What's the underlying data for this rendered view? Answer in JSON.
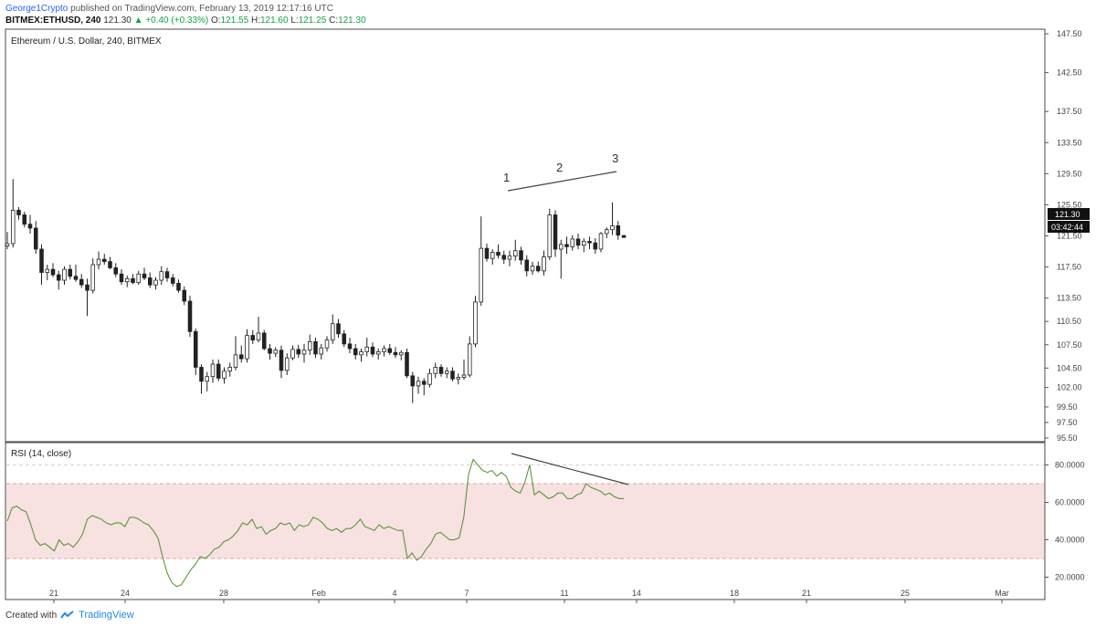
{
  "header": {
    "author": "George1Crypto",
    "published_text": "published on TradingView.com, February 13, 2019 12:17:16 UTC",
    "symbol": "BITMEX:ETHUSD, 240",
    "last": "121.30",
    "change": "+0.40 (+0.33%)",
    "o_label": "O:",
    "o": "121.55",
    "h_label": "H:",
    "h": "121.60",
    "l_label": "L:",
    "l": "121.25",
    "c_label": "C:",
    "c": "121.30"
  },
  "footer": {
    "created_with": "Created with",
    "brand": "TradingView"
  },
  "chart_data": [
    {
      "type": "candlestick",
      "title": "Ethereum / U.S. Dollar, 240, BITMEX",
      "x_ticks": [
        "21",
        "24",
        "28",
        "Feb",
        "4",
        "7",
        "11",
        "14",
        "18",
        "21",
        "25",
        "Mar"
      ],
      "y_ticks": [
        "95.50",
        "97.50",
        "99.50",
        "102.00",
        "104.50",
        "107.50",
        "110.50",
        "113.50",
        "117.50",
        "121.50",
        "125.50",
        "129.50",
        "133.50",
        "137.50",
        "142.50",
        "147.50"
      ],
      "ylim": [
        95.5,
        147.5
      ],
      "last_price_label": "121.30",
      "countdown_label": "03:42:44",
      "annotations": [
        "1",
        "2",
        "3"
      ],
      "candles": [
        {
          "o": 120.2,
          "h": 122.0,
          "l": 119.8,
          "c": 120.5
        },
        {
          "o": 120.5,
          "h": 128.8,
          "l": 120.0,
          "c": 124.8
        },
        {
          "o": 124.8,
          "h": 125.2,
          "l": 123.6,
          "c": 124.2
        },
        {
          "o": 124.2,
          "h": 124.6,
          "l": 122.6,
          "c": 123.0
        },
        {
          "o": 123.0,
          "h": 124.2,
          "l": 121.8,
          "c": 122.5
        },
        {
          "o": 122.5,
          "h": 123.4,
          "l": 119.2,
          "c": 119.8
        },
        {
          "o": 119.8,
          "h": 120.4,
          "l": 115.2,
          "c": 116.8
        },
        {
          "o": 116.8,
          "h": 117.8,
          "l": 115.8,
          "c": 117.2
        },
        {
          "o": 117.2,
          "h": 118.0,
          "l": 116.2,
          "c": 116.5
        },
        {
          "o": 116.5,
          "h": 117.0,
          "l": 114.6,
          "c": 115.8
        },
        {
          "o": 115.8,
          "h": 117.6,
          "l": 115.2,
          "c": 117.2
        },
        {
          "o": 117.2,
          "h": 117.8,
          "l": 115.9,
          "c": 116.3
        },
        {
          "o": 116.3,
          "h": 117.8,
          "l": 115.6,
          "c": 115.9
        },
        {
          "o": 115.9,
          "h": 116.6,
          "l": 114.8,
          "c": 115.2
        },
        {
          "o": 115.2,
          "h": 116.0,
          "l": 111.2,
          "c": 114.5
        },
        {
          "o": 114.5,
          "h": 118.6,
          "l": 114.1,
          "c": 117.8
        },
        {
          "o": 117.8,
          "h": 119.5,
          "l": 117.2,
          "c": 118.5
        },
        {
          "o": 118.5,
          "h": 119.2,
          "l": 117.8,
          "c": 118.2
        },
        {
          "o": 118.2,
          "h": 118.8,
          "l": 117.2,
          "c": 117.4
        },
        {
          "o": 117.4,
          "h": 118.0,
          "l": 116.2,
          "c": 116.6
        },
        {
          "o": 116.6,
          "h": 117.2,
          "l": 115.2,
          "c": 115.6
        },
        {
          "o": 115.6,
          "h": 116.4,
          "l": 114.9,
          "c": 116.0
        },
        {
          "o": 116.0,
          "h": 116.6,
          "l": 115.3,
          "c": 115.5
        },
        {
          "o": 115.5,
          "h": 117.0,
          "l": 115.2,
          "c": 116.6
        },
        {
          "o": 116.6,
          "h": 117.4,
          "l": 115.8,
          "c": 116.1
        },
        {
          "o": 116.1,
          "h": 116.8,
          "l": 114.8,
          "c": 115.2
        },
        {
          "o": 115.2,
          "h": 116.2,
          "l": 114.6,
          "c": 115.8
        },
        {
          "o": 115.8,
          "h": 117.6,
          "l": 115.2,
          "c": 116.9
        },
        {
          "o": 116.9,
          "h": 117.4,
          "l": 115.6,
          "c": 116.1
        },
        {
          "o": 116.1,
          "h": 116.6,
          "l": 115.0,
          "c": 115.4
        },
        {
          "o": 115.4,
          "h": 115.9,
          "l": 114.2,
          "c": 114.5
        },
        {
          "o": 114.5,
          "h": 115.0,
          "l": 112.6,
          "c": 113.1
        },
        {
          "o": 113.1,
          "h": 113.8,
          "l": 108.5,
          "c": 109.2
        },
        {
          "o": 109.2,
          "h": 109.6,
          "l": 103.6,
          "c": 104.6
        },
        {
          "o": 104.6,
          "h": 105.0,
          "l": 101.2,
          "c": 102.8
        },
        {
          "o": 102.8,
          "h": 104.0,
          "l": 101.5,
          "c": 103.4
        },
        {
          "o": 103.4,
          "h": 105.6,
          "l": 102.6,
          "c": 105.0
        },
        {
          "o": 105.0,
          "h": 105.6,
          "l": 102.8,
          "c": 103.2
        },
        {
          "o": 103.2,
          "h": 104.6,
          "l": 102.5,
          "c": 104.1
        },
        {
          "o": 104.1,
          "h": 105.2,
          "l": 103.4,
          "c": 104.6
        },
        {
          "o": 104.6,
          "h": 108.6,
          "l": 104.2,
          "c": 106.2
        },
        {
          "o": 106.2,
          "h": 107.4,
          "l": 105.2,
          "c": 105.7
        },
        {
          "o": 105.7,
          "h": 109.5,
          "l": 105.2,
          "c": 108.7
        },
        {
          "o": 108.7,
          "h": 109.4,
          "l": 107.6,
          "c": 108.1
        },
        {
          "o": 108.1,
          "h": 111.1,
          "l": 107.8,
          "c": 109.0
        },
        {
          "o": 109.0,
          "h": 109.4,
          "l": 106.8,
          "c": 107.0
        },
        {
          "o": 107.0,
          "h": 107.6,
          "l": 105.6,
          "c": 106.4
        },
        {
          "o": 106.4,
          "h": 107.2,
          "l": 105.9,
          "c": 106.8
        },
        {
          "o": 106.8,
          "h": 107.4,
          "l": 103.2,
          "c": 104.2
        },
        {
          "o": 104.2,
          "h": 106.4,
          "l": 103.6,
          "c": 105.8
        },
        {
          "o": 105.8,
          "h": 107.4,
          "l": 105.5,
          "c": 106.9
        },
        {
          "o": 106.9,
          "h": 107.5,
          "l": 105.8,
          "c": 106.3
        },
        {
          "o": 106.3,
          "h": 107.6,
          "l": 105.2,
          "c": 106.8
        },
        {
          "o": 106.8,
          "h": 108.8,
          "l": 106.2,
          "c": 107.9
        },
        {
          "o": 107.9,
          "h": 108.4,
          "l": 105.8,
          "c": 106.3
        },
        {
          "o": 106.3,
          "h": 107.6,
          "l": 105.6,
          "c": 107.1
        },
        {
          "o": 107.1,
          "h": 108.6,
          "l": 106.6,
          "c": 108.1
        },
        {
          "o": 108.1,
          "h": 111.4,
          "l": 107.6,
          "c": 110.2
        },
        {
          "o": 110.2,
          "h": 110.8,
          "l": 108.4,
          "c": 108.9
        },
        {
          "o": 108.9,
          "h": 109.4,
          "l": 107.2,
          "c": 107.6
        },
        {
          "o": 107.6,
          "h": 108.4,
          "l": 106.4,
          "c": 107.0
        },
        {
          "o": 107.0,
          "h": 107.6,
          "l": 105.6,
          "c": 106.2
        },
        {
          "o": 106.2,
          "h": 107.0,
          "l": 105.3,
          "c": 106.6
        },
        {
          "o": 106.6,
          "h": 108.4,
          "l": 106.0,
          "c": 107.2
        },
        {
          "o": 107.2,
          "h": 107.8,
          "l": 105.9,
          "c": 106.3
        },
        {
          "o": 106.3,
          "h": 107.0,
          "l": 105.6,
          "c": 106.6
        },
        {
          "o": 106.6,
          "h": 107.4,
          "l": 106.0,
          "c": 107.0
        },
        {
          "o": 107.0,
          "h": 107.6,
          "l": 106.2,
          "c": 106.5
        },
        {
          "o": 106.5,
          "h": 107.2,
          "l": 105.8,
          "c": 106.2
        },
        {
          "o": 106.2,
          "h": 106.8,
          "l": 105.5,
          "c": 106.5
        },
        {
          "o": 106.5,
          "h": 107.0,
          "l": 103.2,
          "c": 103.5
        },
        {
          "o": 103.5,
          "h": 104.0,
          "l": 100.0,
          "c": 102.2
        },
        {
          "o": 102.2,
          "h": 103.4,
          "l": 101.2,
          "c": 102.8
        },
        {
          "o": 102.8,
          "h": 103.2,
          "l": 101.0,
          "c": 102.4
        },
        {
          "o": 102.4,
          "h": 104.4,
          "l": 102.0,
          "c": 103.8
        },
        {
          "o": 103.8,
          "h": 105.2,
          "l": 103.2,
          "c": 104.6
        },
        {
          "o": 104.6,
          "h": 105.0,
          "l": 103.4,
          "c": 103.8
        },
        {
          "o": 103.8,
          "h": 104.6,
          "l": 103.2,
          "c": 104.1
        },
        {
          "o": 104.1,
          "h": 104.6,
          "l": 102.8,
          "c": 103.1
        },
        {
          "o": 103.1,
          "h": 103.8,
          "l": 102.4,
          "c": 103.3
        },
        {
          "o": 103.3,
          "h": 105.6,
          "l": 103.0,
          "c": 103.6
        },
        {
          "o": 103.6,
          "h": 108.6,
          "l": 103.3,
          "c": 107.6
        },
        {
          "o": 107.6,
          "h": 113.8,
          "l": 107.2,
          "c": 113.0
        },
        {
          "o": 113.0,
          "h": 124.0,
          "l": 112.5,
          "c": 119.9
        },
        {
          "o": 119.9,
          "h": 120.5,
          "l": 118.2,
          "c": 118.6
        },
        {
          "o": 118.6,
          "h": 119.8,
          "l": 117.8,
          "c": 119.4
        },
        {
          "o": 119.4,
          "h": 120.4,
          "l": 118.6,
          "c": 119.0
        },
        {
          "o": 119.0,
          "h": 119.6,
          "l": 117.9,
          "c": 118.5
        },
        {
          "o": 118.5,
          "h": 119.6,
          "l": 117.6,
          "c": 118.9
        },
        {
          "o": 118.9,
          "h": 121.0,
          "l": 118.3,
          "c": 119.6
        },
        {
          "o": 119.6,
          "h": 120.1,
          "l": 117.8,
          "c": 118.4
        },
        {
          "o": 118.4,
          "h": 119.0,
          "l": 116.3,
          "c": 117.0
        },
        {
          "o": 117.0,
          "h": 118.2,
          "l": 116.5,
          "c": 117.6
        },
        {
          "o": 117.6,
          "h": 118.2,
          "l": 116.8,
          "c": 117.0
        },
        {
          "o": 117.0,
          "h": 119.6,
          "l": 116.4,
          "c": 118.8
        },
        {
          "o": 118.8,
          "h": 125.0,
          "l": 118.4,
          "c": 124.2
        },
        {
          "o": 124.2,
          "h": 124.8,
          "l": 118.8,
          "c": 119.8
        },
        {
          "o": 119.8,
          "h": 121.0,
          "l": 116.0,
          "c": 120.4
        },
        {
          "o": 120.4,
          "h": 121.4,
          "l": 119.2,
          "c": 120.1
        },
        {
          "o": 120.1,
          "h": 121.6,
          "l": 119.6,
          "c": 121.1
        },
        {
          "o": 121.1,
          "h": 121.8,
          "l": 119.8,
          "c": 120.3
        },
        {
          "o": 120.3,
          "h": 121.2,
          "l": 119.4,
          "c": 120.8
        },
        {
          "o": 120.8,
          "h": 121.4,
          "l": 119.8,
          "c": 120.6
        },
        {
          "o": 120.6,
          "h": 121.2,
          "l": 119.2,
          "c": 119.8
        },
        {
          "o": 119.8,
          "h": 122.0,
          "l": 119.4,
          "c": 121.8
        },
        {
          "o": 121.8,
          "h": 122.6,
          "l": 121.2,
          "c": 122.3
        },
        {
          "o": 122.3,
          "h": 125.8,
          "l": 121.6,
          "c": 122.8
        },
        {
          "o": 122.8,
          "h": 123.4,
          "l": 121.0,
          "c": 121.6
        },
        {
          "o": 121.55,
          "h": 121.6,
          "l": 121.25,
          "c": 121.3
        }
      ]
    },
    {
      "type": "line",
      "title": "RSI (14, close)",
      "x_ticks": [
        "21",
        "24",
        "28",
        "Feb",
        "4",
        "7",
        "11",
        "14",
        "18",
        "21",
        "25",
        "Mar"
      ],
      "y_ticks": [
        "20.0000",
        "40.0000",
        "60.0000",
        "80.0000"
      ],
      "ylim": [
        10,
        90
      ],
      "band": [
        30,
        70
      ],
      "annotations": [
        "divergence line"
      ],
      "series": [
        {
          "values": [
            50,
            57,
            58,
            56,
            55,
            48,
            40,
            37,
            38,
            36,
            34,
            40,
            37,
            38,
            36,
            39,
            43,
            51,
            53,
            52,
            51,
            49,
            48,
            49,
            49,
            47,
            52,
            52,
            51,
            49,
            48,
            45,
            41,
            31,
            22,
            17,
            15,
            16,
            20,
            24,
            27,
            31,
            30,
            32,
            35,
            36,
            39,
            40,
            42,
            45,
            49,
            48,
            51,
            46,
            47,
            43,
            45,
            46,
            49,
            48,
            49,
            45,
            48,
            47,
            48,
            52,
            51,
            49,
            46,
            45,
            46,
            44,
            46,
            46,
            48,
            51,
            47,
            46,
            45,
            48,
            46,
            47,
            46,
            45,
            45,
            30,
            33,
            29,
            31,
            35,
            38,
            43,
            44,
            42,
            40,
            40,
            41,
            52,
            75,
            83,
            80,
            77,
            76,
            77,
            74,
            76,
            74,
            68,
            66,
            65,
            71,
            80,
            64,
            66,
            64,
            62,
            63,
            65,
            65,
            62,
            62,
            64,
            65,
            70,
            68,
            67,
            66,
            64,
            65,
            63,
            62,
            62
          ]
        }
      ]
    }
  ]
}
